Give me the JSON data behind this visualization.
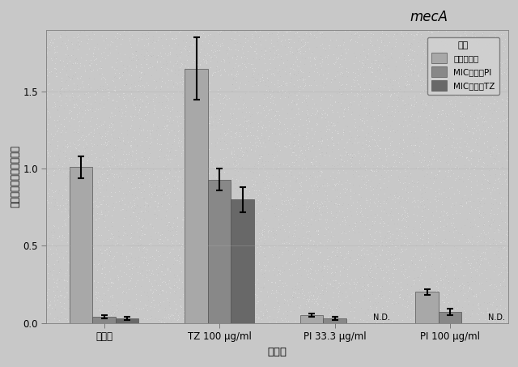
{
  "title": "mecA",
  "xlabel": "適応株",
  "ylabel": "サンプルと比較した発現",
  "groups": [
    "野生型",
    "TZ 100 μg/ml",
    "PI 33.3 μg/ml",
    "PI 100 μg/ml"
  ],
  "series_labels": [
    "ブロスのみ",
    "MIC未満のPI",
    "MIC未満のTZ"
  ],
  "bar_colors": [
    "#a8a8a8",
    "#888888",
    "#686868"
  ],
  "values": [
    [
      1.01,
      0.04,
      0.03
    ],
    [
      1.65,
      0.93,
      0.8
    ],
    [
      0.05,
      0.03,
      null
    ],
    [
      0.2,
      0.07,
      null
    ]
  ],
  "errors": [
    [
      0.07,
      0.01,
      0.01
    ],
    [
      0.2,
      0.07,
      0.08
    ],
    [
      0.01,
      0.01,
      null
    ],
    [
      0.02,
      0.02,
      null
    ]
  ],
  "nd_annotations": [
    [
      false,
      false,
      false
    ],
    [
      false,
      false,
      false
    ],
    [
      false,
      false,
      true
    ],
    [
      false,
      false,
      true
    ]
  ],
  "ylim": [
    0.0,
    1.9
  ],
  "yticks": [
    0.0,
    0.5,
    1.0,
    1.5
  ],
  "ytick_labels": [
    "0.0",
    "0.5",
    "1.0",
    "1.5"
  ],
  "background_color": "#c8c8c8",
  "legend_title": "条件",
  "bar_width": 0.2,
  "stipple_density": 6000,
  "stipple_color": "#f0f0f0",
  "stipple_size": 0.3
}
